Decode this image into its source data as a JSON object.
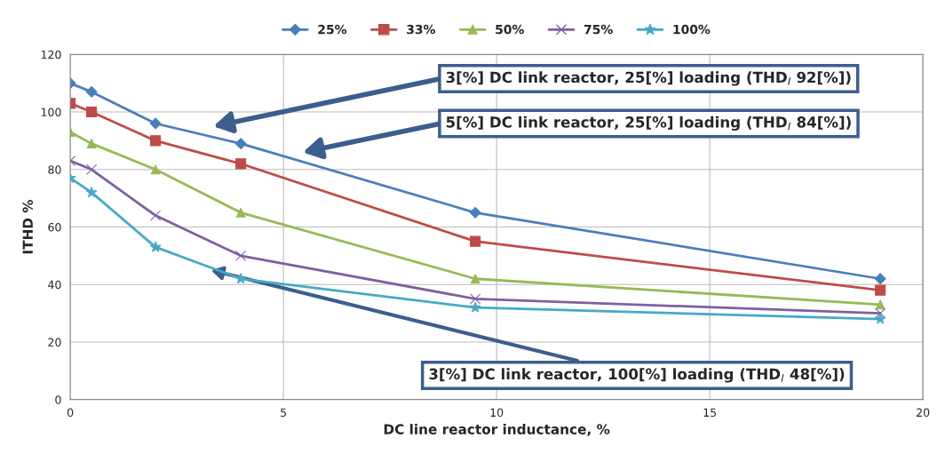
{
  "chart_data": {
    "type": "line",
    "xlabel": "DC line reactor inductance, %",
    "ylabel": "ITHD %",
    "x": [
      0,
      0.5,
      2,
      4,
      9.5,
      19
    ],
    "series": [
      {
        "name": "25%",
        "color": "#4a7ebb",
        "marker": "diamond",
        "values": [
          110,
          107,
          96,
          89,
          65,
          42
        ]
      },
      {
        "name": "33%",
        "color": "#be4b48",
        "marker": "square",
        "values": [
          103,
          100,
          90,
          82,
          55,
          38
        ]
      },
      {
        "name": "50%",
        "color": "#98b954",
        "marker": "triangle",
        "values": [
          93,
          89,
          80,
          65,
          42,
          33
        ]
      },
      {
        "name": "75%",
        "color": "#7d60a0",
        "marker": "cross",
        "values": [
          83,
          80,
          64,
          50,
          35,
          30
        ]
      },
      {
        "name": "100%",
        "color": "#46aac5",
        "marker": "star",
        "values": [
          77,
          72,
          53,
          42,
          32,
          28
        ]
      }
    ],
    "xlim": [
      0,
      20
    ],
    "xticks": [
      0,
      5,
      10,
      15,
      20
    ],
    "ylim": [
      0,
      120
    ],
    "yticks": [
      0,
      20,
      40,
      60,
      80,
      100,
      120
    ],
    "grid": true,
    "legend": "top",
    "annotations": [
      "3[%] DC link reactor, 25[%] loading (THD$_{I}$ 92[%])",
      "5[%] DC link reactor, 25[%] loading (THD$_{I}$ 84[%])",
      {
        "text": "3[%] DC link reactor, 100[%] loading (THD$_{I}$ 48[%])",
        "x": 3.3,
        "y": 45
      }
    ]
  }
}
